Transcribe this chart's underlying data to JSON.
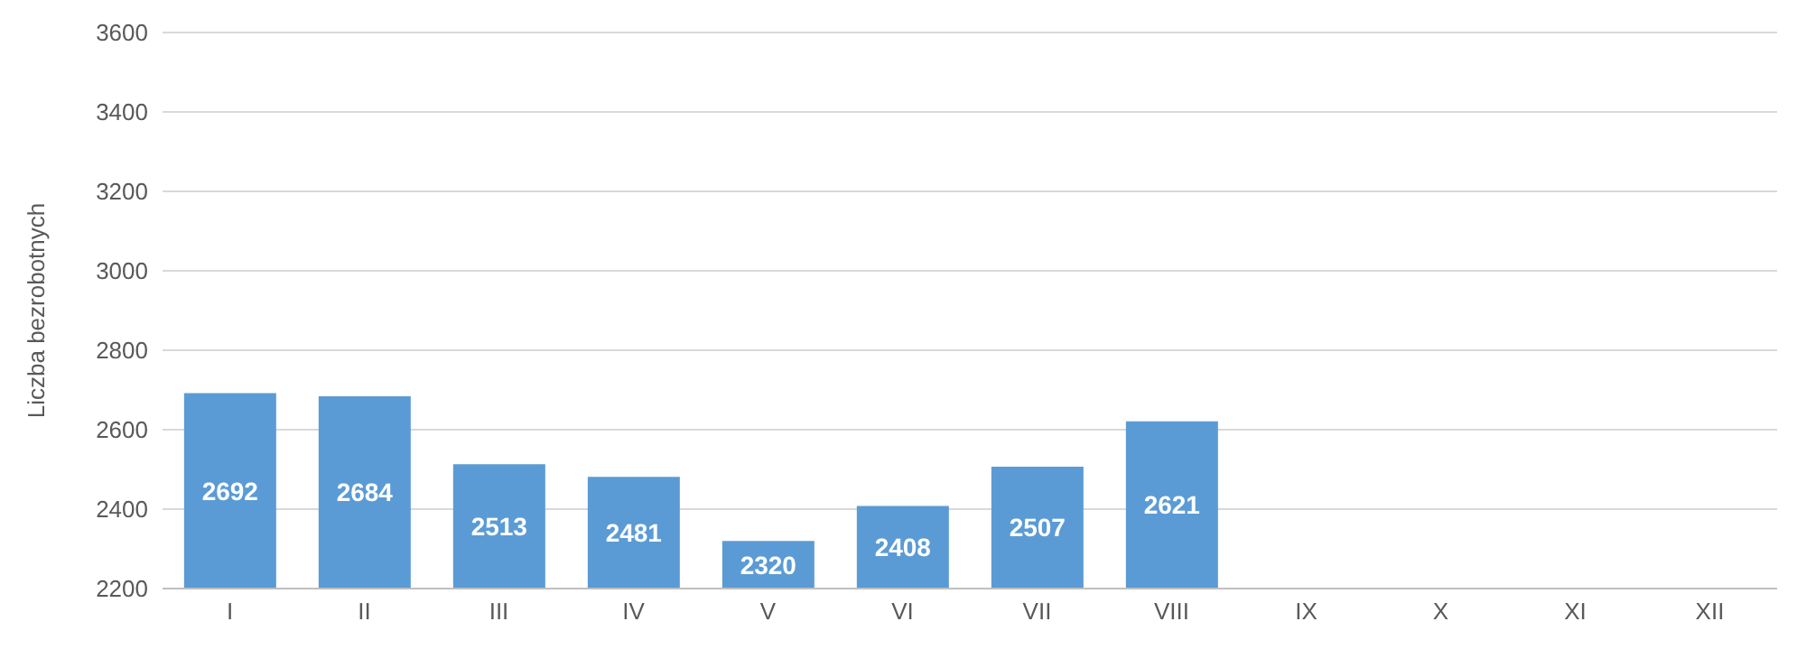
{
  "chart_data": {
    "type": "bar",
    "ylabel": "Liczba bezrobotnych",
    "categories": [
      "I",
      "II",
      "III",
      "IV",
      "V",
      "VI",
      "VII",
      "VIII",
      "IX",
      "X",
      "XI",
      "XII"
    ],
    "values": [
      2692,
      2684,
      2513,
      2481,
      2320,
      2408,
      2507,
      2621,
      null,
      null,
      null,
      null
    ],
    "color": "#5b9bd5",
    "ylim": [
      2200,
      3600
    ],
    "yticks": [
      2200,
      2400,
      2600,
      2800,
      3000,
      3200,
      3400,
      3600
    ],
    "grid": "y",
    "data_labels": true,
    "legend": false
  }
}
